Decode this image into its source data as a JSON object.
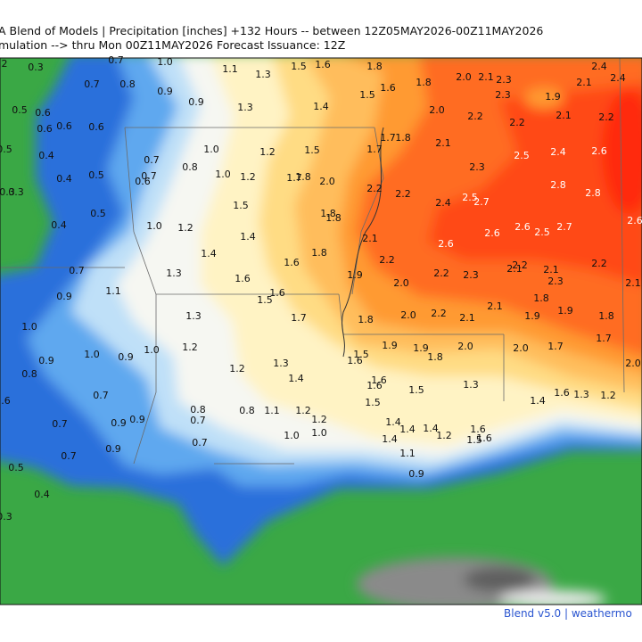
{
  "header": {
    "line1": "A Blend of Models | Precipitation [inches] +132 Hours -- between 12Z05MAY2026-00Z11MAY2026",
    "line2": "mulation --> thru Mon 00Z11MAY2026   Forecast Issuance: 12Z"
  },
  "labels": [
    "2",
    "0.3",
    "0.7",
    "1.0",
    "1.1",
    "1.3",
    "1.5",
    "1.6",
    "1.8",
    "2.4",
    "0.7",
    "0.8",
    "0.9",
    "0.9",
    "1.8",
    "1.6",
    "1.5",
    "2.0",
    "2.1",
    "2.3",
    "2.1",
    "2.4",
    "1.9",
    "2.3",
    "0.5",
    "0.6",
    "1.3",
    "1.4",
    "2.0",
    "2.2",
    "2.2",
    "2.1",
    "2.2",
    "0.6",
    "0.6",
    "0.6",
    "1.7",
    "1.8",
    "2.1",
    "2.5",
    "2.4",
    "2.6",
    "1.0",
    "1.2",
    "1.5",
    "1.7",
    "0.5",
    "0.4",
    "0.7",
    "0.8",
    "2.3",
    "0.5",
    "0.4",
    "1.0",
    "1.2",
    "1.7",
    "1.8",
    "2.0",
    "0.7",
    "0.6",
    "2.2",
    "2.2",
    "2.8",
    "2.8",
    "0.3",
    "0.3",
    "2.5",
    "2.7",
    "2.4",
    "1.5",
    "0.5",
    "1.8",
    "1.8",
    "0.4",
    "1.0",
    "1.2",
    "2.6",
    "2.5",
    "2.7",
    "2.6",
    "2.6",
    "1.4",
    "2.1",
    "2.6",
    "1.4",
    "1.8",
    "1.6",
    "2.2",
    "2.2",
    "2.1",
    "2.1",
    "2.2",
    "0.7",
    "1.3",
    "1.9",
    "2.2",
    "2.3",
    "2.3",
    "1.6",
    "1.6",
    "1.5",
    "2.0",
    "2.1",
    "1.1",
    "0.9",
    "1.8",
    "1.9",
    "2.1",
    "1.3",
    "1.7",
    "1.8",
    "2.0",
    "2.2",
    "2.1",
    "1.9",
    "1.8",
    "1.0",
    "1.7",
    "1.2",
    "1.0",
    "1.0",
    "0.9",
    "1.9",
    "1.9",
    "2.0",
    "2.0",
    "1.7",
    "1.5",
    "1.6",
    "1.8",
    "0.9",
    "2.0",
    "1.3",
    "1.2",
    "0.8",
    "1.6",
    "1.4",
    "1.6",
    "1.5",
    "1.3",
    "1.6",
    "1.3",
    "1.2",
    "1.4",
    "0.7",
    "1.5",
    "0.6",
    "0.8",
    "0.8",
    "1.1",
    "1.2",
    "0.7",
    "1.2",
    "1.4",
    "0.9",
    "0.9",
    "0.7",
    "1.4",
    "1.4",
    "1.6",
    "1.0",
    "1.0",
    "1.2",
    "1.5",
    "1.6",
    "1.4",
    "0.7",
    "0.9",
    "1.1",
    "0.7",
    "0.5",
    "0.9",
    "0.4",
    "0.3"
  ],
  "footer": "Blend v5.0 | weathermo"
}
